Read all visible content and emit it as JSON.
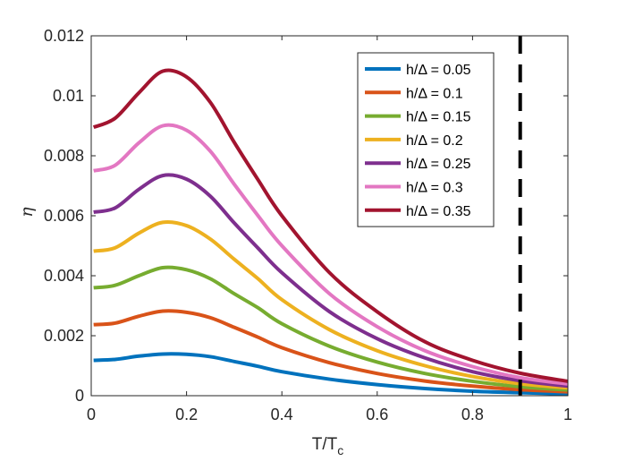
{
  "chart_data": {
    "type": "line",
    "title": "",
    "xlabel_main": "T/T",
    "xlabel_sub": "c",
    "ylabel": "η",
    "xlim": [
      0,
      1
    ],
    "ylim": [
      0,
      0.012
    ],
    "xticks": [
      0,
      0.2,
      0.4,
      0.6,
      0.8,
      1
    ],
    "xtick_labels": [
      "0",
      "0.2",
      "0.4",
      "0.6",
      "0.8",
      "1"
    ],
    "yticks": [
      0,
      0.002,
      0.004,
      0.006,
      0.008,
      0.01,
      0.012
    ],
    "ytick_labels": [
      "0",
      "0.002",
      "0.004",
      "0.006",
      "0.008",
      "0.01",
      "0.012"
    ],
    "grid": false,
    "legend_position": "top-right",
    "vertical_line": {
      "x": 0.9,
      "style": "dashed",
      "color": "#000000"
    },
    "x": [
      0.005,
      0.05,
      0.1,
      0.15,
      0.2,
      0.25,
      0.3,
      0.35,
      0.4,
      0.5,
      0.6,
      0.7,
      0.8,
      0.9,
      1.0
    ],
    "series": [
      {
        "name": "h/Δ = 0.05",
        "color": "#0072BD",
        "values": [
          0.00118,
          0.00121,
          0.00132,
          0.00139,
          0.00138,
          0.0013,
          0.00114,
          0.00098,
          0.0008,
          0.00055,
          0.00037,
          0.00024,
          0.00015,
          0.0001,
          6e-05
        ]
      },
      {
        "name": "h/Δ = 0.1",
        "color": "#D95319",
        "values": [
          0.00237,
          0.00242,
          0.00265,
          0.00282,
          0.00278,
          0.0026,
          0.00228,
          0.00195,
          0.0016,
          0.0011,
          0.00074,
          0.00049,
          0.00032,
          0.0002,
          0.00013
        ]
      },
      {
        "name": "h/Δ = 0.15",
        "color": "#77AC30",
        "values": [
          0.0036,
          0.00368,
          0.004,
          0.00427,
          0.0042,
          0.0039,
          0.0034,
          0.00293,
          0.0024,
          0.00165,
          0.00112,
          0.00074,
          0.00048,
          0.0003,
          0.00019
        ]
      },
      {
        "name": "h/Δ = 0.2",
        "color": "#EDB120",
        "values": [
          0.00482,
          0.00493,
          0.00542,
          0.00578,
          0.00567,
          0.00522,
          0.00455,
          0.0039,
          0.0032,
          0.0022,
          0.0015,
          0.001,
          0.00064,
          0.0004,
          0.00026
        ]
      },
      {
        "name": "h/Δ = 0.25",
        "color": "#7E2F8E",
        "values": [
          0.00612,
          0.00626,
          0.00688,
          0.00734,
          0.00722,
          0.00665,
          0.00576,
          0.00492,
          0.0041,
          0.0028,
          0.0019,
          0.00126,
          0.0008,
          0.0005,
          0.00032
        ]
      },
      {
        "name": "h/Δ = 0.3",
        "color": "#E377C2",
        "values": [
          0.0075,
          0.00768,
          0.00843,
          0.009,
          0.00885,
          0.00815,
          0.00705,
          0.006,
          0.005,
          0.0034,
          0.0023,
          0.0015,
          0.00097,
          0.0006,
          0.00039
        ]
      },
      {
        "name": "h/Δ = 0.35",
        "color": "#A2142F",
        "values": [
          0.00895,
          0.00925,
          0.0101,
          0.01082,
          0.01063,
          0.00978,
          0.00845,
          0.0072,
          0.006,
          0.0041,
          0.0028,
          0.0018,
          0.00118,
          0.00075,
          0.00048
        ]
      }
    ]
  }
}
